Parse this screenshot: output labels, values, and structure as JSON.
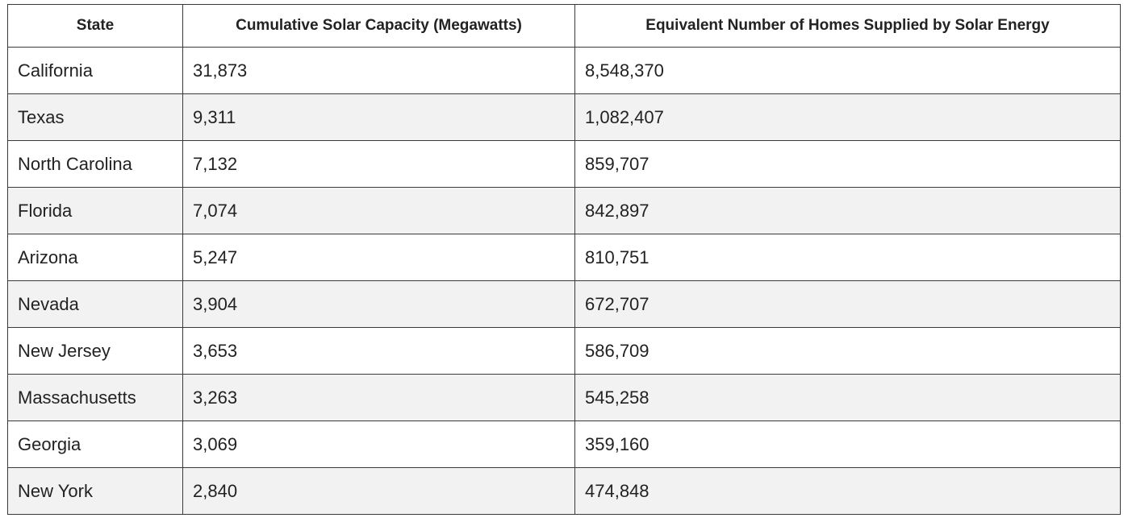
{
  "table": {
    "headers": [
      "State",
      "Cumulative Solar Capacity (Megawatts)",
      "Equivalent Number of Homes Supplied by Solar Energy"
    ],
    "rows": [
      [
        "California",
        "31,873",
        "8,548,370"
      ],
      [
        "Texas",
        "9,311",
        "1,082,407"
      ],
      [
        "North Carolina",
        "7,132",
        "859,707"
      ],
      [
        "Florida",
        "7,074",
        "842,897"
      ],
      [
        "Arizona",
        "5,247",
        "810,751"
      ],
      [
        "Nevada",
        "3,904",
        "672,707"
      ],
      [
        "New Jersey",
        "3,653",
        "586,709"
      ],
      [
        "Massachusetts",
        "3,263",
        "545,258"
      ],
      [
        "Georgia",
        "3,069",
        "359,160"
      ],
      [
        "New York",
        "2,840",
        "474,848"
      ]
    ]
  },
  "colors": {
    "border": "#3a3a3a",
    "row_stripe": "#f2f2f2",
    "text": "#222222"
  }
}
